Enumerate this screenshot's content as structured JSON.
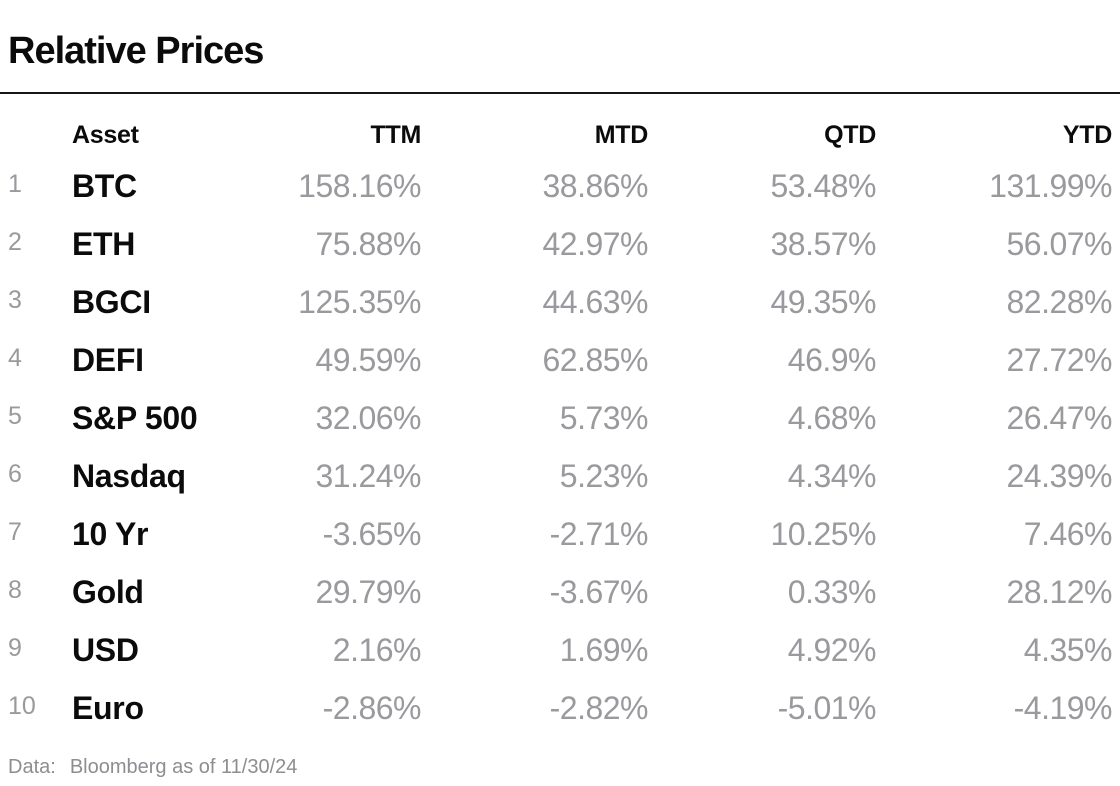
{
  "page": {
    "title": "Relative Prices",
    "footer": {
      "label": "Data:",
      "text": "Bloomberg as of 11/30/24"
    }
  },
  "table": {
    "columns": [
      "Asset",
      "TTM",
      "MTD",
      "QTD",
      "YTD"
    ],
    "rows": [
      {
        "rank": "1",
        "asset": "BTC",
        "ttm": "158.16%",
        "mtd": "38.86%",
        "qtd": "53.48%",
        "ytd": "131.99%"
      },
      {
        "rank": "2",
        "asset": "ETH",
        "ttm": "75.88%",
        "mtd": "42.97%",
        "qtd": "38.57%",
        "ytd": "56.07%"
      },
      {
        "rank": "3",
        "asset": "BGCI",
        "ttm": "125.35%",
        "mtd": "44.63%",
        "qtd": "49.35%",
        "ytd": "82.28%"
      },
      {
        "rank": "4",
        "asset": "DEFI",
        "ttm": "49.59%",
        "mtd": "62.85%",
        "qtd": "46.9%",
        "ytd": "27.72%"
      },
      {
        "rank": "5",
        "asset": "S&P 500",
        "ttm": "32.06%",
        "mtd": "5.73%",
        "qtd": "4.68%",
        "ytd": "26.47%"
      },
      {
        "rank": "6",
        "asset": "Nasdaq",
        "ttm": "31.24%",
        "mtd": "5.23%",
        "qtd": "4.34%",
        "ytd": "24.39%"
      },
      {
        "rank": "7",
        "asset": "10 Yr",
        "ttm": "-3.65%",
        "mtd": "-2.71%",
        "qtd": "10.25%",
        "ytd": "7.46%"
      },
      {
        "rank": "8",
        "asset": "Gold",
        "ttm": "29.79%",
        "mtd": "-3.67%",
        "qtd": "0.33%",
        "ytd": "28.12%"
      },
      {
        "rank": "9",
        "asset": "USD",
        "ttm": "2.16%",
        "mtd": "1.69%",
        "qtd": "4.92%",
        "ytd": "4.35%"
      },
      {
        "rank": "10",
        "asset": "Euro",
        "ttm": "-2.86%",
        "mtd": "-2.82%",
        "qtd": "-5.01%",
        "ytd": "-4.19%"
      }
    ]
  },
  "chart_data": {
    "type": "table",
    "title": "Relative Prices",
    "columns": [
      "Asset",
      "TTM",
      "MTD",
      "QTD",
      "YTD"
    ],
    "units": "percent",
    "rows": [
      {
        "asset": "BTC",
        "ttm": 158.16,
        "mtd": 38.86,
        "qtd": 53.48,
        "ytd": 131.99
      },
      {
        "asset": "ETH",
        "ttm": 75.88,
        "mtd": 42.97,
        "qtd": 38.57,
        "ytd": 56.07
      },
      {
        "asset": "BGCI",
        "ttm": 125.35,
        "mtd": 44.63,
        "qtd": 49.35,
        "ytd": 82.28
      },
      {
        "asset": "DEFI",
        "ttm": 49.59,
        "mtd": 62.85,
        "qtd": 46.9,
        "ytd": 27.72
      },
      {
        "asset": "S&P 500",
        "ttm": 32.06,
        "mtd": 5.73,
        "qtd": 4.68,
        "ytd": 26.47
      },
      {
        "asset": "Nasdaq",
        "ttm": 31.24,
        "mtd": 5.23,
        "qtd": 4.34,
        "ytd": 24.39
      },
      {
        "asset": "10 Yr",
        "ttm": -3.65,
        "mtd": -2.71,
        "qtd": 10.25,
        "ytd": 7.46
      },
      {
        "asset": "Gold",
        "ttm": 29.79,
        "mtd": -3.67,
        "qtd": 0.33,
        "ytd": 28.12
      },
      {
        "asset": "USD",
        "ttm": 2.16,
        "mtd": 1.69,
        "qtd": 4.92,
        "ytd": 4.35
      },
      {
        "asset": "Euro",
        "ttm": -2.86,
        "mtd": -2.82,
        "qtd": -5.01,
        "ytd": -4.19
      }
    ],
    "source_note": "Data: Bloomberg as of 11/30/24"
  },
  "colors": {
    "ink": "#0b0b0c",
    "muted": "#9a9a9e",
    "footer": "#8d8d92",
    "rule": "#161616",
    "background": "#ffffff"
  }
}
